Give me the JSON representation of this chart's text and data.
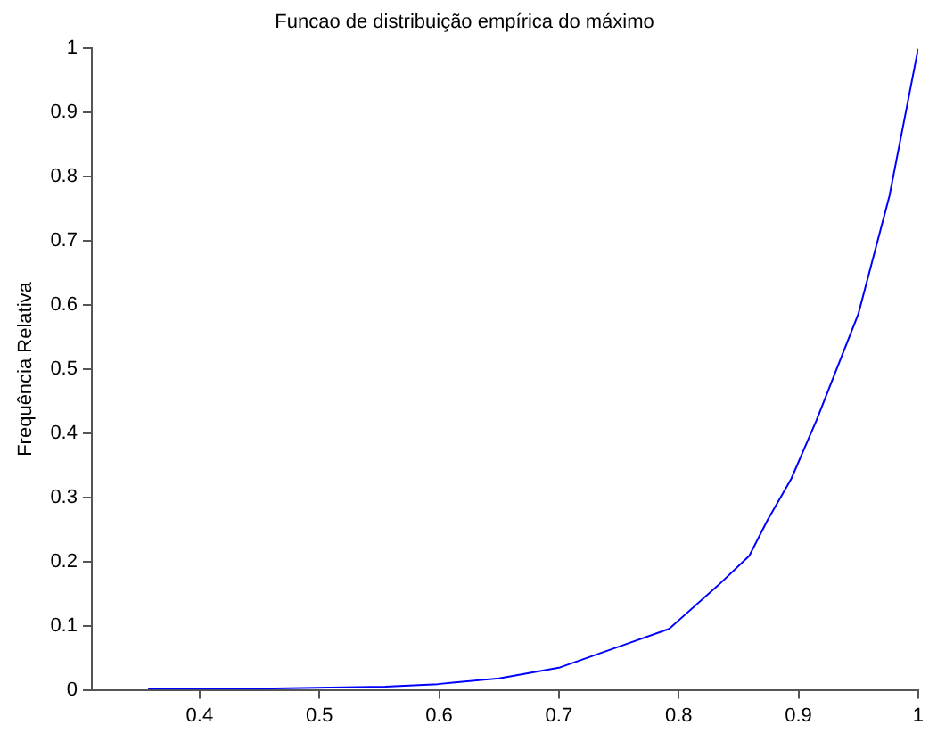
{
  "chart_data": {
    "type": "line",
    "title": "Funcao de distribuição empírica do máximo",
    "ylabel": "Frequência Relativa",
    "series": [
      {
        "color": "#0000ff",
        "x": [
          0.357,
          0.45,
          0.555,
          0.599,
          0.65,
          0.701,
          0.757,
          0.792,
          0.833,
          0.859,
          0.874,
          0.894,
          0.915,
          0.95,
          0.976,
          1.0
        ],
        "values": [
          0.002,
          0.002,
          0.005,
          0.009,
          0.018,
          0.035,
          0.072,
          0.095,
          0.163,
          0.209,
          0.264,
          0.329,
          0.42,
          0.586,
          0.77,
          1.0
        ]
      }
    ],
    "xlim": [
      0.31,
      1
    ],
    "xticks": [
      0.4,
      0.5,
      0.6,
      0.7,
      0.8,
      0.9,
      1
    ],
    "ylim": [
      0,
      1
    ],
    "yticks": [
      0,
      0.1,
      0.2,
      0.3,
      0.4,
      0.5,
      0.6,
      0.7,
      0.8,
      0.9,
      1
    ],
    "grid": false,
    "legend": false,
    "marker": "none",
    "line_style": "solid"
  }
}
